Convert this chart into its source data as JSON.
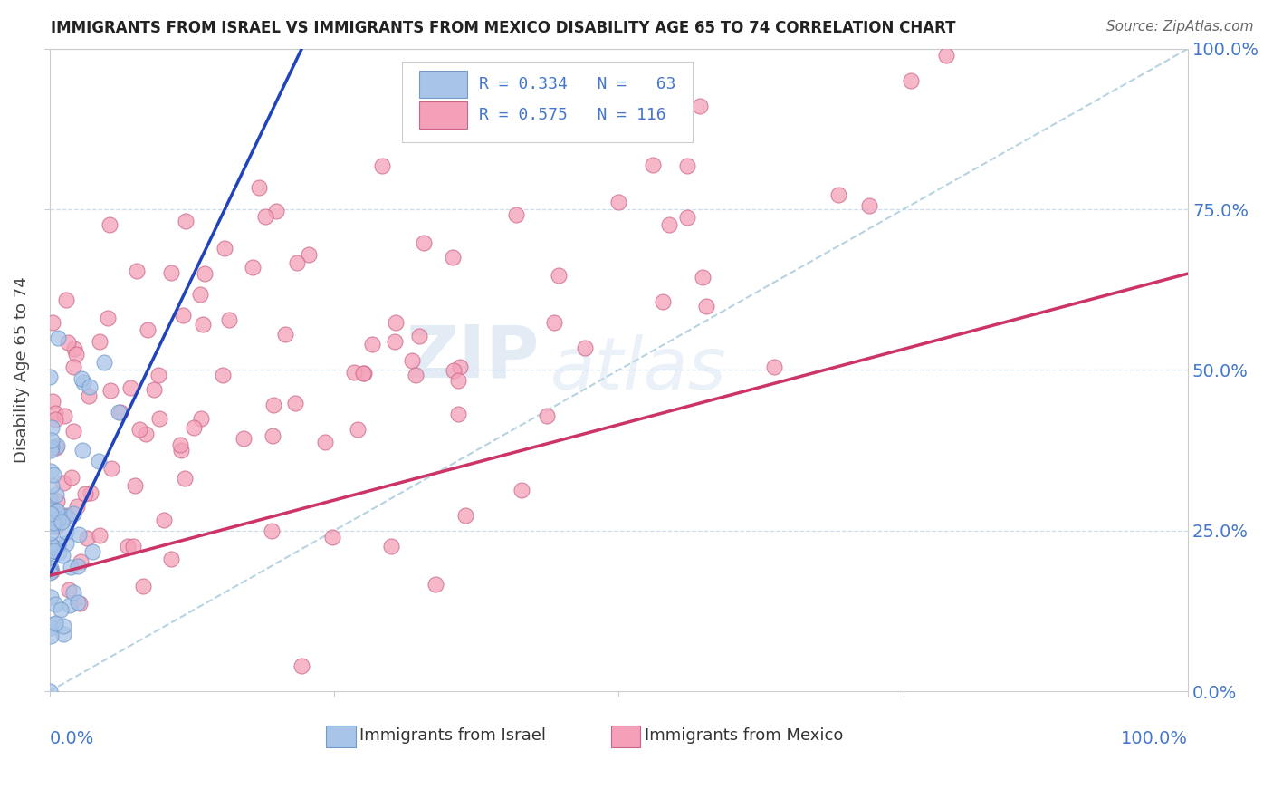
{
  "title": "IMMIGRANTS FROM ISRAEL VS IMMIGRANTS FROM MEXICO DISABILITY AGE 65 TO 74 CORRELATION CHART",
  "source": "Source: ZipAtlas.com",
  "ylabel": "Disability Age 65 to 74",
  "ylabel_right_ticks": [
    "0.0%",
    "25.0%",
    "50.0%",
    "75.0%",
    "100.0%"
  ],
  "ylabel_right_vals": [
    0.0,
    0.25,
    0.5,
    0.75,
    1.0
  ],
  "watermark_zip": "ZIP",
  "watermark_atlas": "atlas",
  "israel_color": "#a8c4e8",
  "israel_edge_color": "#7099cc",
  "mexico_color": "#f4a0b8",
  "mexico_edge_color": "#cc6688",
  "israel_line_color": "#2244bb",
  "mexico_line_color": "#cc3366",
  "diagonal_color": "#aaccdd",
  "axis_color": "#4477cc",
  "background_color": "#ffffff",
  "grid_color": "#ccddee",
  "israel_R": 0.334,
  "israel_N": 63,
  "mexico_R": 0.575,
  "mexico_N": 116,
  "israel_seed": 12,
  "mexico_seed": 99
}
